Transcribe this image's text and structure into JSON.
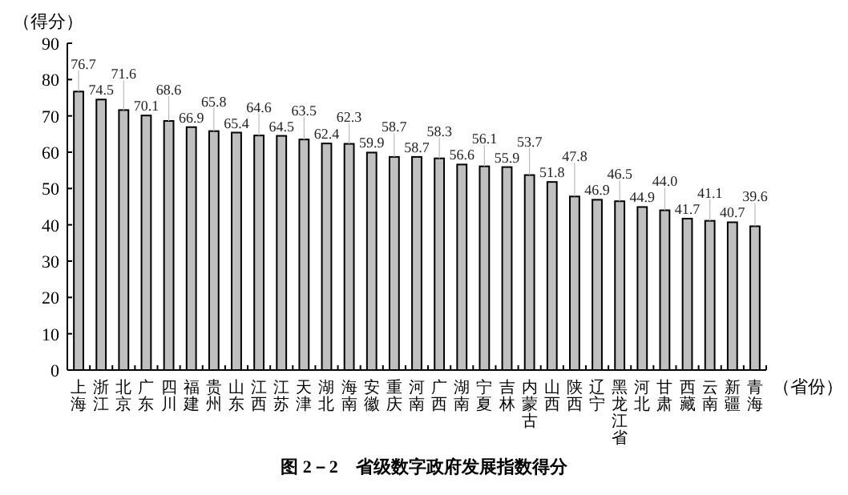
{
  "chart_data": {
    "type": "bar",
    "title": "图 2－2　省级数字政府发展指数得分",
    "ylabel": "（得分）",
    "xlabel": "（省份）",
    "categories": [
      "上海",
      "浙江",
      "北京",
      "广东",
      "四川",
      "福建",
      "贵州",
      "山东",
      "江西",
      "江苏",
      "天津",
      "湖北",
      "海南",
      "安徽",
      "重庆",
      "河南",
      "广西",
      "湖南",
      "宁夏",
      "吉林",
      "内蒙古",
      "山西",
      "陕西",
      "辽宁",
      "黑龙江省",
      "河北",
      "甘肃",
      "西藏",
      "云南",
      "新疆",
      "青海"
    ],
    "values": [
      76.7,
      74.5,
      71.6,
      70.1,
      68.6,
      66.9,
      65.8,
      65.4,
      64.6,
      64.5,
      63.5,
      62.4,
      62.3,
      59.9,
      58.7,
      58.7,
      58.3,
      56.6,
      56.1,
      55.9,
      53.7,
      51.8,
      47.8,
      46.9,
      46.5,
      44.9,
      44.0,
      41.7,
      41.1,
      40.7,
      39.6
    ],
    "color": "#c0c0c0",
    "ylim": [
      0,
      90
    ],
    "yticks": [
      0,
      10,
      20,
      30,
      40,
      50,
      60,
      70,
      80,
      90
    ],
    "value_labels": [
      "76.7",
      "74.5",
      "71.6",
      "70.1",
      "68.6",
      "66.9",
      "65.8",
      "65.4",
      "64.6",
      "64.5",
      "63.5",
      "62.4",
      "62.3",
      "59.9",
      "58.7",
      "58.7",
      "58.3",
      "56.6",
      "56.1",
      "55.9",
      "53.7",
      "51.8",
      "47.8",
      "46.9",
      "46.5",
      "44.9",
      "44.0",
      "41.7",
      "41.1",
      "40.7",
      "39.6"
    ]
  }
}
